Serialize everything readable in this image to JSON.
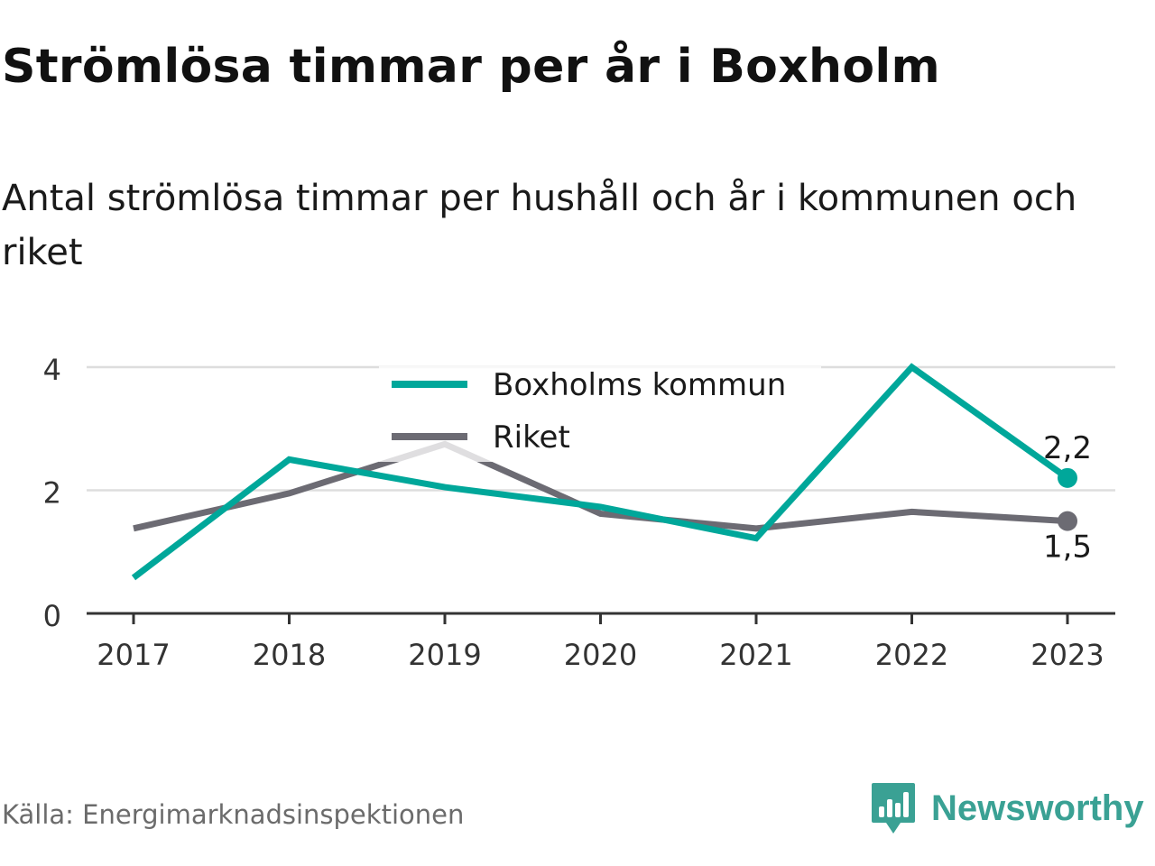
{
  "title": "Strömlösa timmar per år i Boxholm",
  "subtitle": "Antal strömlösa timmar per hushåll och år i kommunen och riket",
  "source": "Källa: Energimarknadsinspektionen",
  "brand": {
    "name": "Newsworthy",
    "logo_icon": "bar-chart-speech-bubble-icon",
    "color": "#3aa194"
  },
  "chart_data": {
    "type": "line",
    "categories": [
      "2017",
      "2018",
      "2019",
      "2020",
      "2021",
      "2022",
      "2023"
    ],
    "ylim": [
      0,
      4
    ],
    "yticks": [
      "0",
      "2",
      "4"
    ],
    "grid": true,
    "legend_position": "top-center",
    "series": [
      {
        "name": "Boxholms kommun",
        "color": "#00a79a",
        "values": [
          0.58,
          2.5,
          2.05,
          1.73,
          1.22,
          4.0,
          2.2
        ],
        "end_label": "2,2"
      },
      {
        "name": "Riket",
        "color": "#6c6b73",
        "values": [
          1.38,
          1.95,
          2.75,
          1.62,
          1.38,
          1.65,
          1.5
        ],
        "end_label": "1,5"
      }
    ]
  }
}
